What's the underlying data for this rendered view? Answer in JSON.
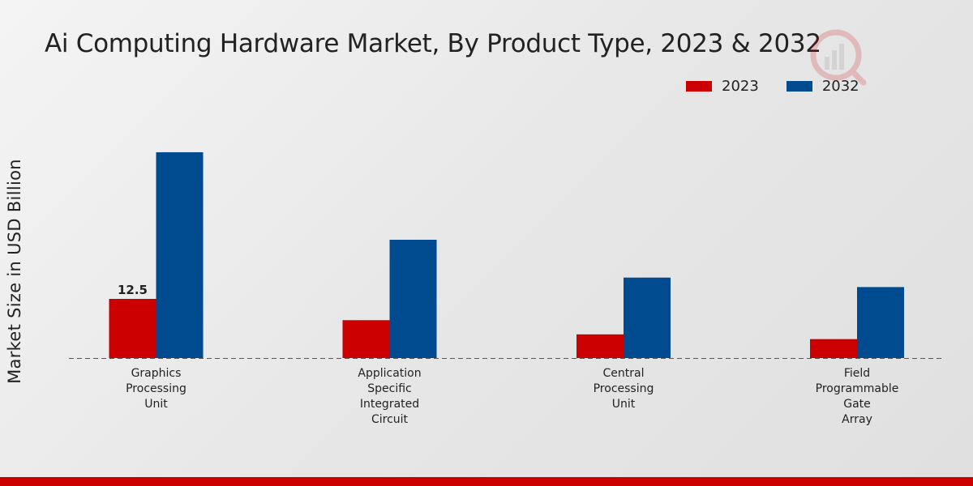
{
  "chart_data": {
    "type": "bar",
    "title": "Ai Computing Hardware Market, By Product Type, 2023 & 2032",
    "xlabel": "",
    "ylabel": "Market Size in USD Billion",
    "categories": [
      [
        "Graphics",
        "Processing",
        "Unit"
      ],
      [
        "Application",
        "Specific",
        "Integrated",
        "Circuit"
      ],
      [
        "Central",
        "Processing",
        "Unit"
      ],
      [
        "Field",
        "Programmable",
        "Gate",
        "Array"
      ]
    ],
    "series": [
      {
        "name": "2023",
        "color": "#cc0000",
        "values": [
          12.5,
          8.0,
          5.0,
          4.0
        ],
        "labels": [
          "12.5",
          "",
          "",
          ""
        ]
      },
      {
        "name": "2032",
        "color": "#004a8f",
        "values": [
          43.5,
          25.0,
          17.0,
          15.0
        ],
        "labels": [
          "",
          "",
          "",
          ""
        ]
      }
    ],
    "ylim": [
      0,
      50
    ],
    "grid": false,
    "legend_position": "top-right"
  },
  "colors": {
    "accent_red": "#cc0000",
    "accent_blue": "#004a8f"
  },
  "icons": {
    "watermark": "chart-logo-icon"
  }
}
